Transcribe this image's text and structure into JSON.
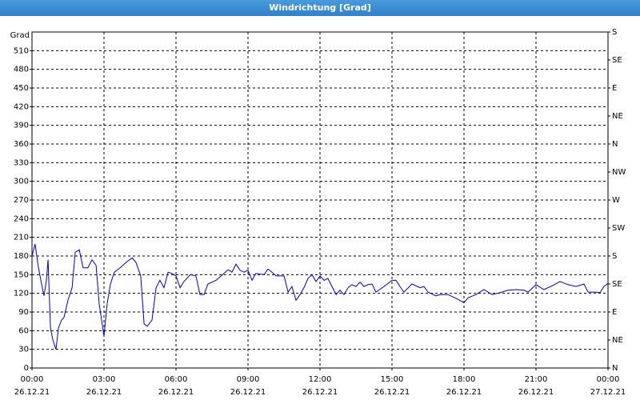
{
  "chart_data": {
    "type": "line",
    "title": "Windrichtung [Grad]",
    "y_label": "Grad",
    "color": "#0000c0",
    "x": [
      0,
      0.13,
      0.27,
      0.4,
      0.5,
      0.6,
      0.67,
      0.77,
      0.87,
      1.0,
      1.1,
      1.23,
      1.33,
      1.5,
      1.67,
      1.8,
      1.97,
      2.13,
      2.33,
      2.5,
      2.67,
      2.8,
      2.9,
      3.0,
      3.13,
      3.27,
      3.43,
      3.67,
      3.93,
      4.17,
      4.33,
      4.53,
      4.67,
      4.8,
      5.0,
      5.17,
      5.33,
      5.5,
      5.67,
      5.83,
      6.0,
      6.17,
      6.33,
      6.6,
      6.83,
      7.0,
      7.17,
      7.33,
      7.67,
      8.0,
      8.17,
      8.33,
      8.5,
      8.67,
      8.83,
      9.0,
      9.17,
      9.33,
      9.67,
      9.83,
      10.0,
      10.17,
      10.5,
      10.67,
      10.83,
      11.0,
      11.17,
      11.33,
      11.5,
      11.67,
      11.83,
      12.0,
      12.17,
      12.33,
      12.5,
      12.67,
      12.83,
      13.0,
      13.17,
      13.33,
      13.5,
      13.67,
      13.83,
      14.0,
      14.17,
      14.33,
      14.67,
      15.0,
      15.17,
      15.33,
      15.5,
      15.83,
      16.17,
      16.33,
      16.5,
      16.83,
      17.0,
      17.33,
      17.67,
      18.0,
      18.17,
      18.5,
      18.83,
      19.17,
      19.5,
      19.83,
      20.17,
      20.5,
      20.67,
      21.0,
      21.33,
      21.67,
      22.0,
      22.33,
      22.67,
      23.0,
      23.17,
      23.5,
      23.67,
      23.83,
      24.0
    ],
    "values": [
      180,
      199,
      161,
      135,
      116,
      141,
      174,
      64,
      45,
      30,
      64,
      77,
      81,
      109,
      129,
      186,
      190,
      161,
      161,
      174,
      165,
      103,
      77,
      51,
      103,
      135,
      154,
      161,
      170,
      177,
      170,
      148,
      71,
      67,
      77,
      129,
      141,
      129,
      154,
      152,
      148,
      129,
      139,
      150,
      148,
      118,
      118,
      135,
      141,
      152,
      158,
      154,
      167,
      157,
      154,
      157,
      141,
      152,
      150,
      159,
      154,
      148,
      148,
      122,
      131,
      109,
      118,
      129,
      144,
      150,
      139,
      148,
      141,
      144,
      131,
      118,
      125,
      118,
      129,
      134,
      131,
      138,
      131,
      134,
      135,
      122,
      131,
      141,
      141,
      131,
      122,
      135,
      129,
      131,
      122,
      116,
      118,
      118,
      112,
      105,
      113,
      118,
      126,
      118,
      121,
      125,
      126,
      125,
      122,
      134,
      126,
      132,
      139,
      134,
      131,
      135,
      122,
      122,
      121,
      131,
      136
    ],
    "xlim": [
      0,
      24
    ],
    "xticks": [
      {
        "value": 0,
        "label": "00:00",
        "date": "26.12.21"
      },
      {
        "value": 3,
        "label": "03:00",
        "date": "26.12.21"
      },
      {
        "value": 6,
        "label": "06:00",
        "date": "26.12.21"
      },
      {
        "value": 9,
        "label": "09:00",
        "date": "26.12.21"
      },
      {
        "value": 12,
        "label": "12:00",
        "date": "26.12.21"
      },
      {
        "value": 15,
        "label": "15:00",
        "date": "26.12.21"
      },
      {
        "value": 18,
        "label": "18:00",
        "date": "26.12.21"
      },
      {
        "value": 21,
        "label": "21:00",
        "date": "26.12.21"
      },
      {
        "value": 24,
        "label": "00:00",
        "date": "27.12.21"
      }
    ],
    "ylim": [
      0,
      540
    ],
    "yticks": [
      0,
      30,
      60,
      90,
      120,
      150,
      180,
      210,
      240,
      270,
      300,
      330,
      360,
      390,
      420,
      450,
      480,
      510
    ],
    "y2lim": [
      0,
      540
    ],
    "y2ticks": [
      {
        "value": 0,
        "label": "N"
      },
      {
        "value": 45,
        "label": "NE"
      },
      {
        "value": 90,
        "label": "E"
      },
      {
        "value": 135,
        "label": "SE"
      },
      {
        "value": 180,
        "label": "S"
      },
      {
        "value": 225,
        "label": "SW"
      },
      {
        "value": 270,
        "label": "W"
      },
      {
        "value": 315,
        "label": "NW"
      },
      {
        "value": 360,
        "label": "N"
      },
      {
        "value": 405,
        "label": "NE"
      },
      {
        "value": 450,
        "label": "E"
      },
      {
        "value": 495,
        "label": "SE"
      },
      {
        "value": 540,
        "label": "S"
      }
    ],
    "grid": true
  }
}
